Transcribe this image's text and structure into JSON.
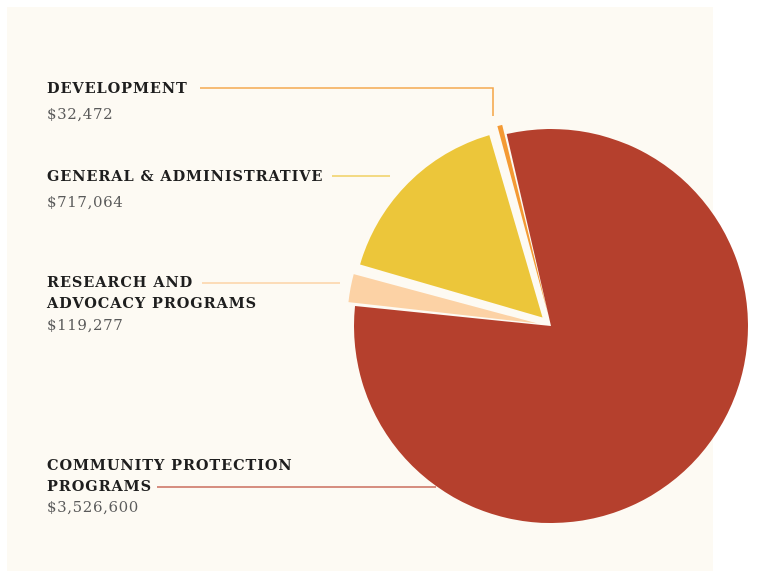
{
  "chart_data": {
    "type": "pie",
    "title": "",
    "exploded": true,
    "start_angle_deg": 347,
    "direction": "clockwise",
    "slices": [
      {
        "label": "COMMUNITY PROTECTION PROGRAMS",
        "label_lines": [
          "COMMUNITY PROTECTION",
          "PROGRAMS"
        ],
        "value": 3526600,
        "value_label": "$3,526,600",
        "color": "#b5402d",
        "line_color": "#c96b5a",
        "explode": 0
      },
      {
        "label": "RESEARCH AND ADVOCACY PROGRAMS",
        "label_lines": [
          "RESEARCH AND",
          "ADVOCACY PROGRAMS"
        ],
        "value": 119277,
        "value_label": "$119,277",
        "color": "#fcd2a5",
        "line_color": "#fcd2a5",
        "explode": 1
      },
      {
        "label": "GENERAL & ADMINISTRATIVE",
        "label_lines": [
          "GENERAL & ADMINISTRATIVE"
        ],
        "value": 717064,
        "value_label": "$717,064",
        "color": "#ecc63a",
        "line_color": "#f0d060",
        "explode": 1
      },
      {
        "label": "DEVELOPMENT",
        "label_lines": [
          "DEVELOPMENT"
        ],
        "value": 32472,
        "value_label": "$32,472",
        "color": "#f49a34",
        "line_color": "#f4a74c",
        "explode": 1
      }
    ]
  },
  "colors": {
    "background": "#fdfaf3",
    "label_text": "#1e1e1e",
    "value_text": "#5a5a5a"
  }
}
